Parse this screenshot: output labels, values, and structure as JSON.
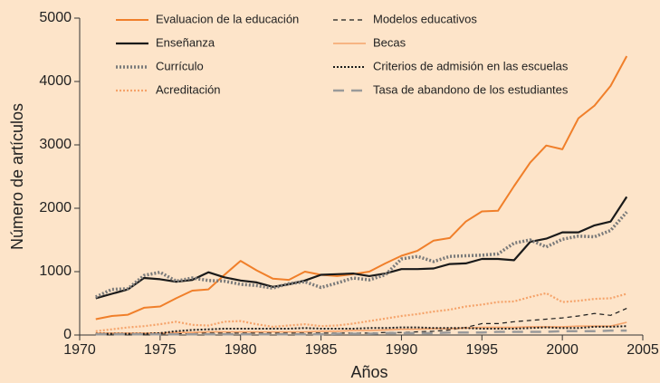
{
  "chart_data": {
    "type": "line",
    "xlabel": "Años",
    "ylabel": "Número de artículos",
    "x": [
      1971,
      1972,
      1973,
      1974,
      1975,
      1976,
      1977,
      1978,
      1979,
      1980,
      1981,
      1982,
      1983,
      1984,
      1985,
      1986,
      1987,
      1988,
      1989,
      1990,
      1991,
      1992,
      1993,
      1994,
      1995,
      1996,
      1997,
      1998,
      1999,
      2000,
      2001,
      2002,
      2003,
      2004
    ],
    "xlim": [
      1970,
      2005
    ],
    "xticks": [
      1970,
      1975,
      1980,
      1985,
      1990,
      1995,
      2000,
      2005
    ],
    "ylim": [
      0,
      5000
    ],
    "yticks": [
      0,
      1000,
      2000,
      3000,
      4000,
      5000
    ],
    "legend": "top",
    "series": [
      {
        "name": "Evaluacion de la educación",
        "color": "#f07f2a",
        "style": "solid",
        "width": 2,
        "values": [
          250,
          300,
          320,
          430,
          450,
          580,
          700,
          720,
          950,
          1170,
          1020,
          890,
          870,
          1000,
          950,
          930,
          960,
          1000,
          1130,
          1250,
          1330,
          1490,
          1530,
          1790,
          1950,
          1960,
          2350,
          2720,
          2990,
          2930,
          3420,
          3620,
          3930,
          4400
        ]
      },
      {
        "name": "Modelos educativos",
        "color": "#1a1a1a",
        "style": "dashed",
        "width": 1.2,
        "values": [
          20,
          20,
          20,
          20,
          20,
          20,
          30,
          30,
          30,
          30,
          30,
          30,
          30,
          30,
          30,
          30,
          30,
          30,
          40,
          40,
          50,
          60,
          80,
          120,
          180,
          180,
          210,
          230,
          250,
          270,
          300,
          340,
          310,
          420
        ]
      },
      {
        "name": "Enseñanza",
        "color": "#1a1a1a",
        "style": "solid",
        "width": 2.2,
        "values": [
          580,
          650,
          720,
          900,
          880,
          840,
          870,
          990,
          910,
          860,
          830,
          760,
          800,
          860,
          950,
          960,
          970,
          930,
          970,
          1040,
          1040,
          1050,
          1120,
          1130,
          1200,
          1200,
          1180,
          1470,
          1520,
          1620,
          1620,
          1730,
          1790,
          2180
        ]
      },
      {
        "name": "Becas",
        "color": "#f5a36a",
        "style": "solid",
        "width": 1.6,
        "values": [
          30,
          30,
          30,
          30,
          30,
          40,
          40,
          50,
          50,
          50,
          50,
          50,
          50,
          50,
          60,
          60,
          70,
          70,
          80,
          90,
          90,
          100,
          100,
          110,
          120,
          120,
          120,
          130,
          130,
          130,
          140,
          140,
          140,
          200
        ]
      },
      {
        "name": "Currículo",
        "color": "#7a7a7a",
        "style": "dotted",
        "width": 3.5,
        "values": [
          600,
          720,
          730,
          940,
          990,
          850,
          900,
          860,
          850,
          800,
          780,
          740,
          810,
          840,
          750,
          820,
          900,
          870,
          950,
          1200,
          1240,
          1160,
          1240,
          1250,
          1260,
          1280,
          1450,
          1500,
          1390,
          1510,
          1560,
          1550,
          1650,
          1940
        ]
      },
      {
        "name": "Criterios de admisión en las escuelas",
        "color": "#1a1a1a",
        "style": "dotted",
        "width": 2,
        "values": [
          20,
          20,
          20,
          20,
          30,
          60,
          80,
          90,
          100,
          100,
          100,
          100,
          100,
          110,
          100,
          100,
          100,
          110,
          110,
          120,
          120,
          110,
          110,
          110,
          100,
          100,
          100,
          110,
          120,
          110,
          110,
          130,
          130,
          140
        ]
      },
      {
        "name": "Acreditación",
        "color": "#f5a36a",
        "style": "dotted",
        "width": 2.2,
        "values": [
          60,
          90,
          120,
          140,
          170,
          210,
          160,
          150,
          210,
          220,
          170,
          130,
          150,
          170,
          140,
          150,
          180,
          220,
          260,
          300,
          330,
          370,
          400,
          450,
          480,
          520,
          530,
          600,
          660,
          520,
          540,
          570,
          580,
          650
        ]
      },
      {
        "name": "Tasa de abandono de los estudiantes",
        "color": "#9a9a9a",
        "style": "longdash",
        "width": 2.5,
        "values": [
          10,
          10,
          10,
          10,
          10,
          10,
          10,
          10,
          10,
          10,
          10,
          10,
          10,
          10,
          10,
          20,
          20,
          20,
          30,
          30,
          30,
          30,
          40,
          40,
          40,
          50,
          50,
          50,
          50,
          60,
          60,
          60,
          70,
          70
        ]
      }
    ]
  }
}
